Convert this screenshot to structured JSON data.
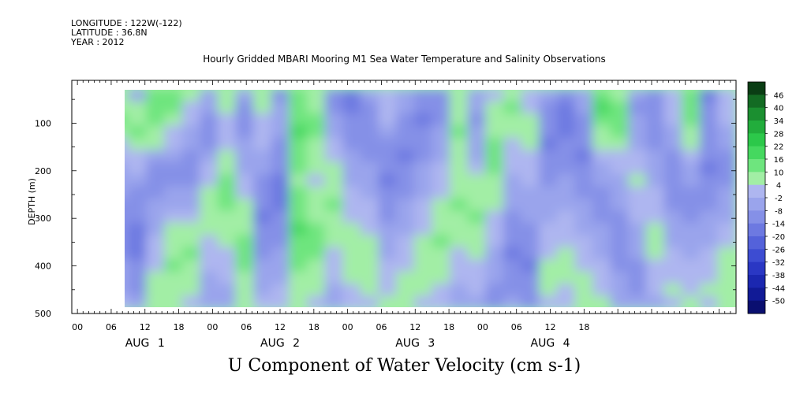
{
  "meta": {
    "longitude": "LONGITUDE : 122W(-122)",
    "latitude": "LATITUDE : 36.8N",
    "year": "YEAR : 2012"
  },
  "chart_data": {
    "type": "heatmap",
    "title": "Hourly Gridded MBARI Mooring M1 Sea Water Temperature and Salinity Observations",
    "subtitle": "U Component of Water Velocity (cm s-1)",
    "xlabel": "",
    "ylabel": "DEPTH (m)",
    "x_tick_labels": [
      "00",
      "06",
      "12",
      "18",
      "00",
      "06",
      "12",
      "18",
      "00",
      "06",
      "12",
      "18",
      "00",
      "06",
      "12",
      "18"
    ],
    "x_day_labels": [
      "AUG 1",
      "AUG 2",
      "AUG 3",
      "AUG 4"
    ],
    "y_tick_labels": [
      "100",
      "200",
      "300",
      "400",
      "500"
    ],
    "ylim": [
      500,
      10
    ],
    "x_range_hours": [
      -1,
      117
    ],
    "data_start_hour": 6,
    "colorbar": {
      "labels": [
        "46",
        "40",
        "34",
        "28",
        "22",
        "16",
        "10",
        "4",
        "-2",
        "-8",
        "-14",
        "-20",
        "-26",
        "-32",
        "-38",
        "-44",
        "-50"
      ],
      "colors": [
        "#0a3d14",
        "#136b23",
        "#1b8f30",
        "#22ad3c",
        "#2cc84a",
        "#45d85f",
        "#6ee57e",
        "#a2eea5",
        "#aeb6f0",
        "#9aa4ec",
        "#8590e7",
        "#6d79e1",
        "#5462da",
        "#3d4cd2",
        "#2a37c4",
        "#1b27b0",
        "#111a96",
        "#0a0f70"
      ]
    },
    "values": [
      [
        8,
        -4,
        12,
        14,
        6,
        -2,
        8,
        -6,
        10,
        -8,
        12,
        8,
        -10,
        -14,
        -6,
        4,
        -2,
        -10,
        -12,
        6,
        -4,
        4,
        10,
        2,
        -6,
        -10,
        -4,
        16,
        10,
        -6,
        -8,
        4,
        12,
        -14,
        4
      ],
      [
        10,
        8,
        16,
        12,
        4,
        -6,
        6,
        -8,
        6,
        -6,
        14,
        10,
        -8,
        -16,
        -8,
        2,
        -4,
        -12,
        -10,
        8,
        -6,
        6,
        12,
        4,
        -8,
        -14,
        -6,
        18,
        12,
        -8,
        -10,
        2,
        14,
        -12,
        2
      ],
      [
        12,
        10,
        14,
        8,
        2,
        -8,
        4,
        -10,
        4,
        -4,
        16,
        12,
        -4,
        -12,
        -10,
        0,
        -8,
        -14,
        -8,
        10,
        -8,
        8,
        10,
        6,
        -10,
        -16,
        -8,
        14,
        14,
        -6,
        -12,
        0,
        12,
        -10,
        0
      ],
      [
        6,
        12,
        10,
        4,
        -2,
        -10,
        2,
        -8,
        2,
        -6,
        18,
        14,
        -2,
        -10,
        -12,
        -4,
        -10,
        -12,
        -6,
        12,
        -6,
        10,
        6,
        8,
        -12,
        -14,
        -10,
        10,
        12,
        -4,
        -10,
        -2,
        10,
        -8,
        -4
      ],
      [
        4,
        8,
        6,
        2,
        -6,
        -8,
        4,
        -6,
        0,
        -8,
        16,
        10,
        2,
        -8,
        -10,
        -8,
        -12,
        -10,
        -4,
        10,
        -4,
        12,
        4,
        6,
        -14,
        -12,
        -12,
        6,
        8,
        -2,
        -8,
        -6,
        6,
        -10,
        -6
      ],
      [
        2,
        4,
        -2,
        -4,
        -10,
        -4,
        6,
        -4,
        -2,
        -10,
        14,
        8,
        4,
        -6,
        -8,
        -10,
        -14,
        -8,
        -2,
        8,
        -2,
        14,
        2,
        4,
        -12,
        -10,
        -14,
        2,
        4,
        2,
        -6,
        -8,
        2,
        -12,
        -8
      ],
      [
        -2,
        0,
        -8,
        -8,
        -12,
        0,
        10,
        -2,
        -4,
        -12,
        12,
        6,
        6,
        -4,
        -6,
        -12,
        -12,
        -6,
        0,
        6,
        2,
        12,
        0,
        2,
        -10,
        -8,
        -12,
        -2,
        2,
        4,
        -4,
        -10,
        -2,
        -14,
        -10
      ],
      [
        -4,
        -4,
        -12,
        -10,
        -10,
        4,
        12,
        0,
        -8,
        -14,
        10,
        4,
        8,
        -2,
        -4,
        -14,
        -10,
        -4,
        2,
        8,
        6,
        10,
        -2,
        0,
        -8,
        -6,
        -10,
        -6,
        -2,
        6,
        -2,
        -12,
        -6,
        -12,
        -8
      ],
      [
        -6,
        -8,
        -10,
        -6,
        -6,
        8,
        14,
        4,
        -10,
        -16,
        12,
        6,
        10,
        0,
        -2,
        -12,
        -8,
        -2,
        4,
        10,
        8,
        8,
        -4,
        -2,
        -6,
        -4,
        -8,
        -8,
        -4,
        4,
        0,
        -10,
        -8,
        -10,
        -6
      ],
      [
        -8,
        -10,
        -6,
        -2,
        -2,
        10,
        12,
        6,
        -12,
        -14,
        14,
        8,
        12,
        2,
        0,
        -10,
        -6,
        0,
        6,
        12,
        10,
        6,
        -6,
        -4,
        -4,
        -2,
        -6,
        -10,
        -6,
        2,
        2,
        -8,
        -10,
        -8,
        -4
      ],
      [
        -10,
        -12,
        -4,
        2,
        4,
        8,
        10,
        8,
        -14,
        -12,
        16,
        10,
        10,
        4,
        2,
        -8,
        -4,
        2,
        8,
        10,
        12,
        4,
        -8,
        -6,
        -2,
        0,
        -4,
        -8,
        -8,
        0,
        4,
        -6,
        -8,
        -6,
        -2
      ],
      [
        -12,
        -14,
        -2,
        6,
        8,
        6,
        8,
        10,
        -12,
        -10,
        18,
        12,
        8,
        6,
        4,
        -6,
        -2,
        4,
        10,
        8,
        10,
        2,
        -10,
        -8,
        0,
        2,
        -2,
        -6,
        -10,
        -2,
        6,
        -4,
        -6,
        -4,
        2
      ],
      [
        -10,
        -16,
        0,
        8,
        10,
        4,
        6,
        12,
        -10,
        -8,
        16,
        14,
        6,
        8,
        6,
        -4,
        0,
        6,
        12,
        6,
        8,
        0,
        -12,
        -10,
        2,
        4,
        0,
        -4,
        -12,
        -4,
        8,
        -2,
        -4,
        -2,
        4
      ],
      [
        -8,
        -14,
        2,
        10,
        12,
        2,
        4,
        14,
        -8,
        -6,
        14,
        12,
        4,
        10,
        8,
        -2,
        2,
        8,
        10,
        4,
        6,
        -2,
        -14,
        -12,
        4,
        6,
        2,
        -2,
        -10,
        -6,
        6,
        0,
        -2,
        0,
        6
      ],
      [
        -6,
        -12,
        4,
        12,
        10,
        0,
        2,
        12,
        -6,
        -4,
        12,
        10,
        2,
        8,
        10,
        0,
        4,
        10,
        8,
        2,
        4,
        -4,
        -12,
        -14,
        6,
        8,
        4,
        0,
        -8,
        -8,
        4,
        2,
        0,
        2,
        8
      ],
      [
        -4,
        -10,
        6,
        10,
        8,
        -2,
        0,
        10,
        -4,
        -2,
        10,
        8,
        0,
        6,
        8,
        2,
        6,
        8,
        6,
        0,
        2,
        -6,
        -10,
        -12,
        8,
        6,
        6,
        2,
        -6,
        -10,
        2,
        4,
        2,
        4,
        10
      ],
      [
        -2,
        -8,
        8,
        8,
        6,
        -4,
        -2,
        8,
        -2,
        0,
        8,
        6,
        -2,
        4,
        6,
        4,
        8,
        6,
        4,
        -2,
        0,
        -8,
        -8,
        -10,
        6,
        4,
        8,
        4,
        -4,
        -8,
        0,
        6,
        4,
        6,
        8
      ],
      [
        0,
        -6,
        10,
        6,
        4,
        -6,
        -4,
        6,
        0,
        2,
        6,
        4,
        -4,
        2,
        4,
        6,
        6,
        4,
        2,
        -4,
        -2,
        -10,
        -6,
        -8,
        4,
        2,
        6,
        6,
        -2,
        -6,
        -2,
        4,
        6,
        4,
        6
      ]
    ]
  }
}
